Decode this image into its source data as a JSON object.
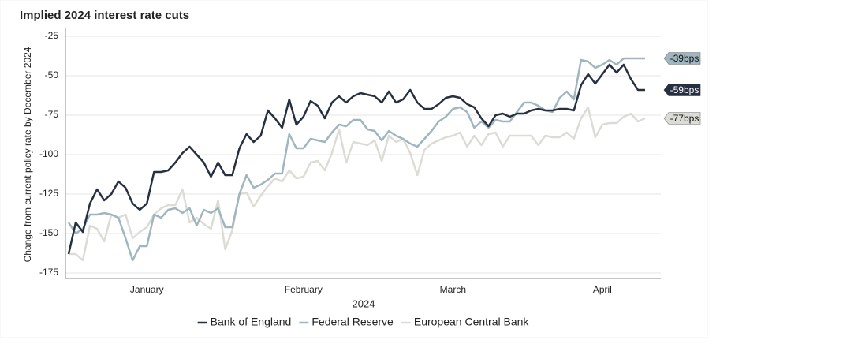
{
  "chart_data": {
    "type": "line",
    "title": "Implied 2024 interest rate cuts",
    "y_label": "Change from current policy rate by December 2024",
    "x_label": "2024",
    "categories": [
      null,
      null,
      null,
      null,
      null,
      null,
      null,
      null,
      null,
      null,
      null,
      "January",
      null,
      null,
      null,
      null,
      null,
      null,
      null,
      null,
      null,
      null,
      null,
      null,
      null,
      null,
      null,
      null,
      null,
      null,
      null,
      null,
      null,
      "February",
      null,
      null,
      null,
      null,
      null,
      null,
      null,
      null,
      null,
      null,
      null,
      null,
      null,
      null,
      null,
      null,
      null,
      null,
      null,
      null,
      "March",
      null,
      null,
      null,
      null,
      null,
      null,
      null,
      null,
      null,
      null,
      null,
      null,
      null,
      null,
      null,
      null,
      null,
      null,
      null,
      null,
      "April",
      null,
      null,
      null,
      null,
      null,
      null
    ],
    "ylim": [
      -180,
      -20
    ],
    "yticks": [
      -25,
      -50,
      -75,
      -100,
      -125,
      -150,
      -175
    ],
    "grid": true,
    "legend": "bottom",
    "series": [
      {
        "name": "Bank of England",
        "color": "#263041",
        "end_label": "-59bps",
        "values": [
          -163,
          -143,
          -149,
          -131,
          -122,
          -129,
          -125,
          -117,
          -121,
          -131,
          -135,
          -131,
          -111,
          -111,
          -110,
          -105,
          -99,
          -95,
          -100,
          -105,
          -114,
          -105,
          -113,
          -113,
          -96,
          -87,
          -92,
          -88,
          -72,
          -77,
          -83,
          -65,
          -81,
          -76,
          -66,
          -69,
          -77,
          -67,
          -63,
          -67,
          -63,
          -61,
          -62,
          -63,
          -67,
          -60,
          -67,
          -65,
          -59,
          -67,
          -71,
          -71,
          -68,
          -64,
          -63,
          -64,
          -68,
          -70,
          -77,
          -82,
          -75,
          -74,
          -76,
          -74,
          -74,
          -72,
          -71,
          -72,
          -72,
          -71,
          -71,
          -72,
          -56,
          -49,
          -55,
          -49,
          -43,
          -48,
          -43,
          -52,
          -59,
          -59
        ]
      },
      {
        "name": "Federal Reserve",
        "color": "#9fb6bf",
        "end_label": "-39bps",
        "values": [
          -143,
          -150,
          -147,
          -138,
          -138,
          -137,
          -138,
          -140,
          -153,
          -167,
          -158,
          -158,
          -138,
          -140,
          -135,
          -134,
          -137,
          -134,
          -145,
          -135,
          -137,
          -134,
          -146,
          -146,
          -125,
          -113,
          -121,
          -119,
          -116,
          -112,
          -112,
          -87,
          -96,
          -96,
          -90,
          -91,
          -92,
          -86,
          -81,
          -82,
          -78,
          -78,
          -84,
          -85,
          -91,
          -85,
          -88,
          -90,
          -93,
          -95,
          -90,
          -85,
          -79,
          -76,
          -71,
          -70,
          -73,
          -83,
          -79,
          -83,
          -78,
          -79,
          -79,
          -73,
          -67,
          -67,
          -69,
          -72,
          -73,
          -64,
          -60,
          -65,
          -40,
          -41,
          -45,
          -43,
          -40,
          -43,
          -39,
          -39,
          -39,
          -39
        ]
      },
      {
        "name": "European Central Bank",
        "color": "#dcdcd6",
        "end_label": "-77bps",
        "values": [
          -163,
          -163,
          -167,
          -145,
          -147,
          -155,
          -138,
          -140,
          -138,
          -153,
          -149,
          -146,
          -138,
          -134,
          -132,
          -132,
          -122,
          -143,
          -140,
          -144,
          -147,
          -129,
          -160,
          -148,
          -125,
          -124,
          -133,
          -126,
          -120,
          -115,
          -117,
          -110,
          -115,
          -114,
          -105,
          -104,
          -110,
          -99,
          -84,
          -105,
          -92,
          -93,
          -94,
          -91,
          -104,
          -88,
          -92,
          -90,
          -99,
          -113,
          -97,
          -93,
          -91,
          -89,
          -88,
          -86,
          -95,
          -88,
          -94,
          -87,
          -86,
          -95,
          -88,
          -88,
          -88,
          -88,
          -94,
          -88,
          -89,
          -89,
          -86,
          -90,
          -77,
          -70,
          -89,
          -81,
          -80,
          -80,
          -76,
          -74,
          -79,
          -77
        ]
      }
    ]
  }
}
